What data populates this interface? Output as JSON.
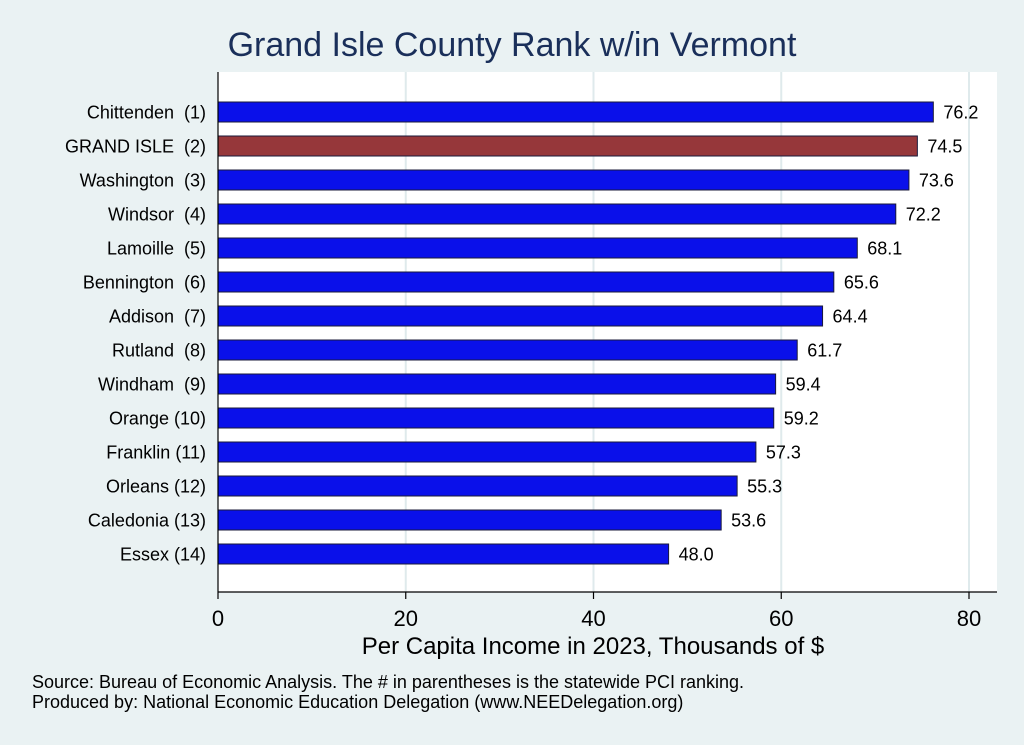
{
  "chart_data": {
    "type": "bar",
    "orientation": "horizontal",
    "title": "Grand Isle County Rank w/in Vermont",
    "xlabel": "Per Capita Income in 2023, Thousands of $",
    "ylabel": "",
    "xlim": [
      0,
      80
    ],
    "xticks": [
      0,
      20,
      40,
      60,
      80
    ],
    "grid": true,
    "categories": [
      "Chittenden  (1)",
      "GRAND ISLE  (2)",
      "Washington  (3)",
      "Windsor  (4)",
      "Lamoille  (5)",
      "Bennington  (6)",
      "Addison  (7)",
      "Rutland  (8)",
      "Windham  (9)",
      "Orange (10)",
      "Franklin (11)",
      "Orleans (12)",
      "Caledonia (13)",
      "Essex (14)"
    ],
    "values": [
      76.2,
      74.5,
      73.6,
      72.2,
      68.1,
      65.6,
      64.4,
      61.7,
      59.4,
      59.2,
      57.3,
      55.3,
      53.6,
      48.0
    ],
    "value_labels": [
      "76.2",
      "74.5",
      "73.6",
      "72.2",
      "68.1",
      "65.6",
      "64.4",
      "61.7",
      "59.4",
      "59.2",
      "57.3",
      "55.3",
      "53.6",
      "48.0"
    ],
    "highlight_index": 1,
    "colors": {
      "default": "#0a10ea",
      "highlight": "#96373a",
      "title": "#1a2f5a",
      "grid": "#dfeaec",
      "plot_bg": "#ffffff",
      "page_bg": "#eaf2f3"
    }
  },
  "notes": {
    "source": "Source: Bureau of Economic Analysis. The # in parentheses is the statewide PCI ranking.",
    "producer": "Produced by: National Economic Education Delegation (www.NEEDelegation.org)"
  }
}
